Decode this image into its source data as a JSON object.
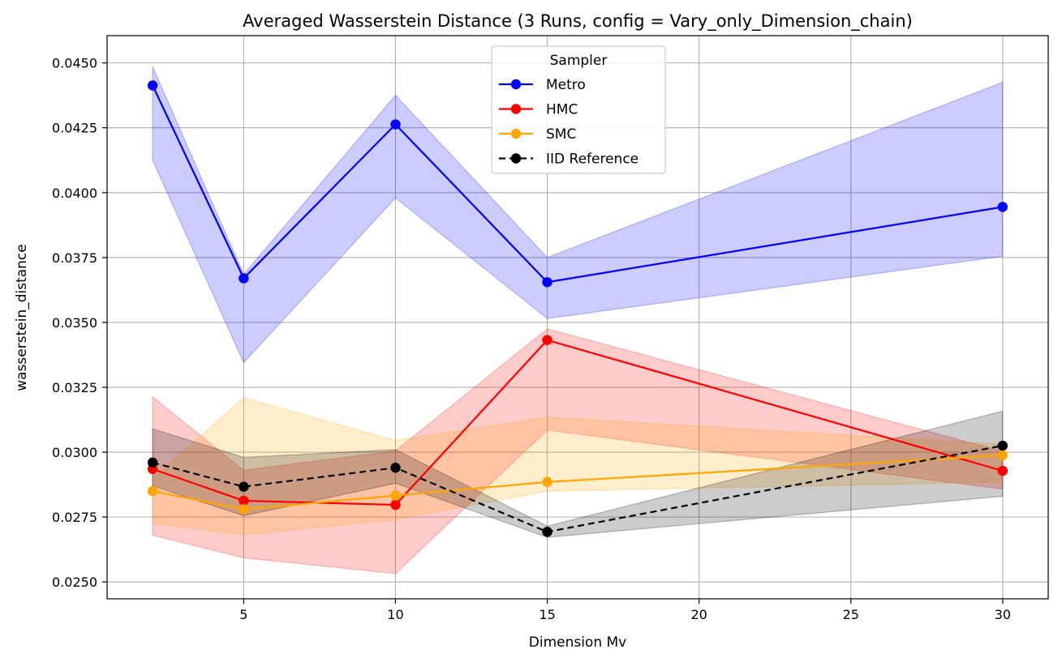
{
  "chart_data": {
    "type": "line",
    "title": "Averaged Wasserstein Distance (3 Runs, config = Vary_only_Dimension_chain)",
    "xlabel": "Dimension Mv",
    "ylabel": "wasserstein_distance",
    "xlim": [
      0.5,
      31.5
    ],
    "ylim": [
      0.02435,
      0.04605
    ],
    "x_ticks": [
      5,
      10,
      15,
      20,
      25,
      30
    ],
    "y_ticks": [
      0.025,
      0.0275,
      0.03,
      0.0325,
      0.035,
      0.0375,
      0.04,
      0.0425,
      0.045
    ],
    "grid": true,
    "legend": {
      "title": "Sampler",
      "placement": "top-center"
    },
    "x": [
      2,
      5,
      10,
      15,
      30
    ],
    "series": [
      {
        "name": "Metro",
        "color": "#0000ff",
        "line_style": "solid",
        "values": [
          0.04413,
          0.0367,
          0.04263,
          0.03655,
          0.03945
        ],
        "band_lower": [
          0.04125,
          0.03345,
          0.0398,
          0.03515,
          0.03755
        ],
        "band_upper": [
          0.04485,
          0.03685,
          0.04375,
          0.0375,
          0.04425
        ]
      },
      {
        "name": "HMC",
        "color": "#ff0000",
        "line_style": "solid",
        "values": [
          0.02935,
          0.02813,
          0.02797,
          0.03432,
          0.02928
        ],
        "band_lower": [
          0.0268,
          0.02593,
          0.02532,
          0.03085,
          0.02858
        ],
        "band_upper": [
          0.03213,
          0.0293,
          0.03005,
          0.03475,
          0.03003
        ]
      },
      {
        "name": "SMC",
        "color": "#ffa500",
        "line_style": "solid",
        "values": [
          0.0285,
          0.0278,
          0.02833,
          0.02885,
          0.02988
        ],
        "band_lower": [
          0.02725,
          0.02682,
          0.0274,
          0.0285,
          0.02885
        ],
        "band_upper": [
          0.029,
          0.0321,
          0.03045,
          0.03135,
          0.0303
        ]
      },
      {
        "name": "IID Reference",
        "color": "#000000",
        "line_style": "dashed",
        "values": [
          0.0296,
          0.02867,
          0.0294,
          0.02693,
          0.03025
        ],
        "band_lower": [
          0.0287,
          0.02755,
          0.0288,
          0.02672,
          0.0283
        ],
        "band_upper": [
          0.0309,
          0.0298,
          0.0301,
          0.02715,
          0.03158
        ]
      }
    ]
  }
}
